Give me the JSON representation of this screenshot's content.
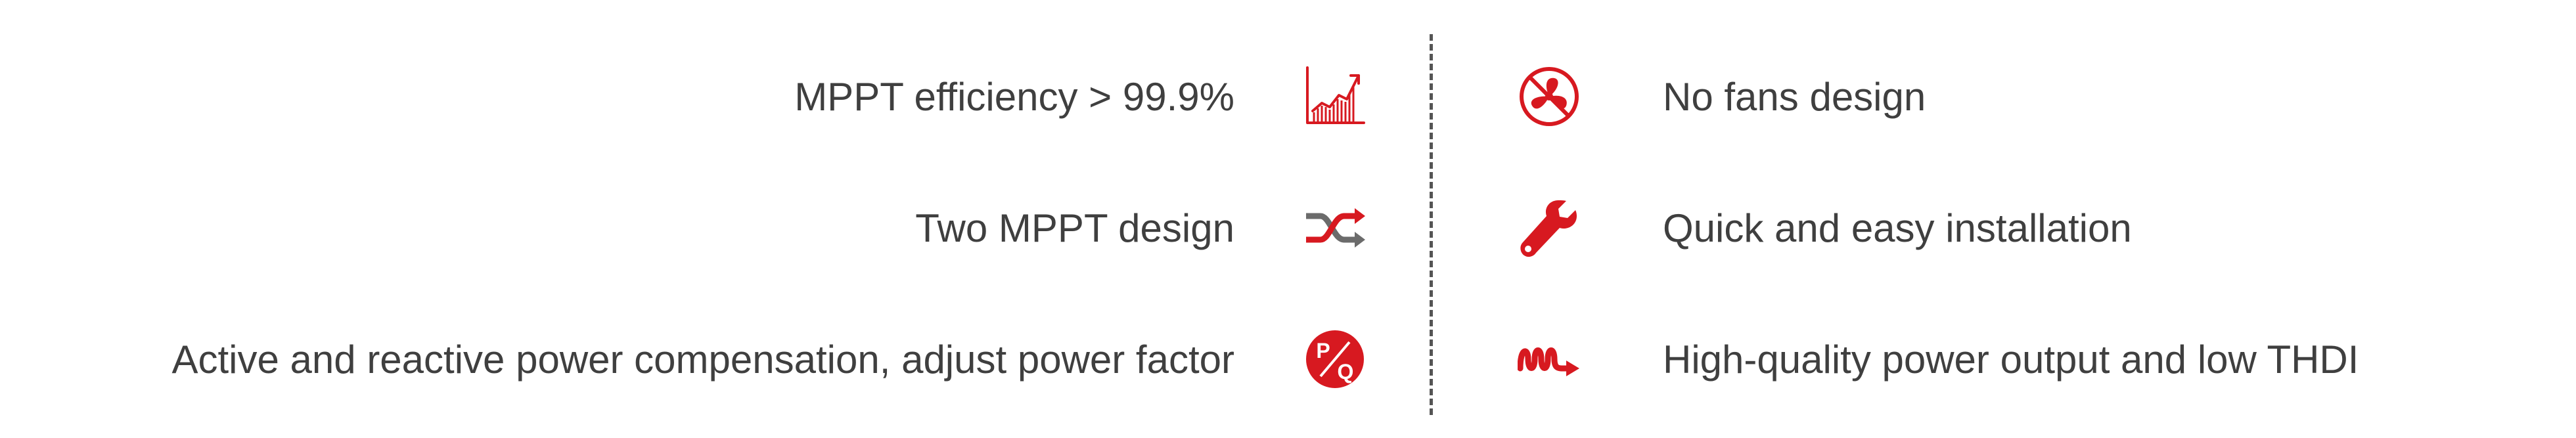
{
  "colors": {
    "accent": "#d71920",
    "icon_gray": "#6b6b6b",
    "text": "#3f3f3f",
    "divider": "#555555"
  },
  "features_left": [
    {
      "label": "MPPT efficiency > 99.9%",
      "icon": "chart-growth-icon"
    },
    {
      "label": "Two MPPT design",
      "icon": "shuffle-arrows-icon"
    },
    {
      "label": "Active and reactive power compensation, adjust power factor",
      "icon": "pq-icon",
      "icon_text_p": "P",
      "icon_text_q": "Q"
    }
  ],
  "features_right": [
    {
      "label": "No fans design",
      "icon": "no-fan-icon"
    },
    {
      "label": "Quick and easy installation",
      "icon": "wrench-icon"
    },
    {
      "label": "High-quality power output and low THDI",
      "icon": "waveform-arrow-icon"
    }
  ]
}
